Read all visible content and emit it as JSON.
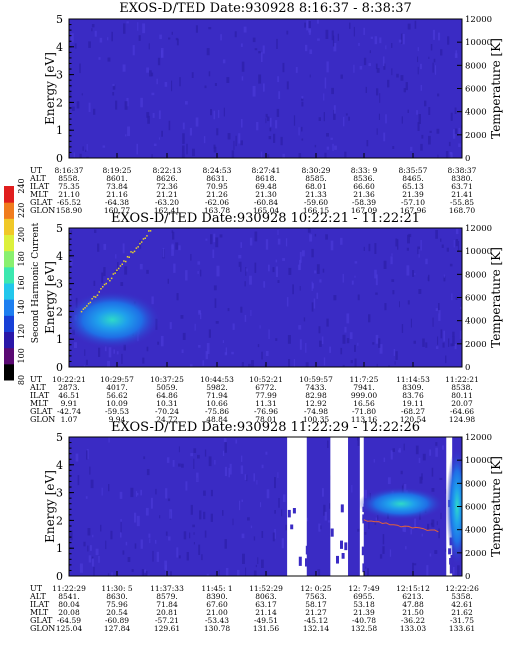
{
  "colorbar": {
    "label": "Second Harmonic Current",
    "ticks": [
      "80",
      "100",
      "120",
      "140",
      "160",
      "180",
      "200",
      "220",
      "240"
    ],
    "colors": [
      "#000000",
      "#5a0a73",
      "#2a17a8",
      "#1840d6",
      "#1e7ff0",
      "#22c7ec",
      "#3ce8b0",
      "#8af070",
      "#dcf03c",
      "#f0c828",
      "#f07c1e",
      "#e01e1e"
    ]
  },
  "chart_data": [
    {
      "type": "heatmap",
      "title": "EXOS-D/TED  Date:930928  8:16:37 - 8:38:37",
      "ylabel": "Energy [eV]",
      "ylabel_right": "Temperature [K]",
      "ylim": [
        0,
        5
      ],
      "yticks": [
        "0",
        "1",
        "2",
        "3",
        "4",
        "5"
      ],
      "ylim_right": [
        0,
        12000
      ],
      "yticks_right": [
        "0",
        "2000",
        "4000",
        "6000",
        "8000",
        "10000",
        "12000"
      ],
      "table_rows": [
        "UT",
        "ALT",
        "ILAT",
        "MLT",
        "GLAT",
        "GLON"
      ],
      "table_cols": [
        [
          "8:16:37",
          "8558.",
          "75.35",
          "21.10",
          "-65.52",
          "158.90"
        ],
        [
          "8:19:25",
          "8601.",
          "73.84",
          "21.16",
          "-64.38",
          "160.77"
        ],
        [
          "8:22:13",
          "8626.",
          "72.36",
          "21.21",
          "-63.20",
          "162.41"
        ],
        [
          "8:24:53",
          "8631.",
          "70.95",
          "21.26",
          "-62.06",
          "163.78"
        ],
        [
          "8:27:41",
          "8618.",
          "69.48",
          "21.30",
          "-60.84",
          "165.04"
        ],
        [
          "8:30:29",
          "8585.",
          "68.01",
          "21.33",
          "-59.60",
          "166.15"
        ],
        [
          "8:33: 9",
          "8536.",
          "66.60",
          "21.36",
          "-58.39",
          "167.09"
        ],
        [
          "8:35:57",
          "8465.",
          "65.13",
          "21.39",
          "-57.10",
          "167.96"
        ],
        [
          "8:38:37",
          "8380.",
          "63.71",
          "21.41",
          "-55.85",
          "168.70"
        ]
      ],
      "features": []
    },
    {
      "type": "heatmap",
      "title": "EXOS-D/TED  Date:930928  10:22:21 - 11:22:21",
      "ylabel": "Energy [eV]",
      "ylabel_right": "Temperature [K]",
      "ylim": [
        0,
        5
      ],
      "yticks": [
        "0",
        "1",
        "2",
        "3",
        "4",
        "5"
      ],
      "ylim_right": [
        0,
        12000
      ],
      "yticks_right": [
        "0",
        "2000",
        "4000",
        "6000",
        "8000",
        "10000",
        "12000"
      ],
      "table_rows": [
        "UT",
        "ALT",
        "ILAT",
        "MLT",
        "GLAT",
        "GLON"
      ],
      "table_cols": [
        [
          "10:22:21",
          "2873.",
          "46.51",
          "9.91",
          "-42.74",
          "1.07"
        ],
        [
          "10:29:57",
          "4017.",
          "56.62",
          "10.09",
          "-59.53",
          "9.94"
        ],
        [
          "10:37:25",
          "5059.",
          "64.86",
          "10.31",
          "-70.24",
          "24.72"
        ],
        [
          "10:44:53",
          "5982.",
          "71.94",
          "10.66",
          "-75.86",
          "48.84"
        ],
        [
          "10:52:21",
          "6772.",
          "77.99",
          "11.31",
          "-76.96",
          "78.01"
        ],
        [
          "10:59:57",
          "7433.",
          "82.98",
          "12.92",
          "-74.98",
          "100.35"
        ],
        [
          "11:7:25",
          "7941.",
          "999.00",
          "16.56",
          "-71.80",
          "113.16"
        ],
        [
          "11:14:53",
          "8309.",
          "83.76",
          "19.11",
          "-68.27",
          "120.54"
        ],
        [
          "11:22:21",
          "8538.",
          "80.11",
          "20.07",
          "-64.66",
          "124.98"
        ]
      ],
      "features": [
        {
          "kind": "ion-enhancement",
          "x_range": [
            0,
            0.22
          ],
          "energy_center": 1.7,
          "energy_halfwidth": 0.9,
          "level": "high"
        }
      ]
    },
    {
      "type": "heatmap",
      "title": "EXOS-D/TED  Date:930928  11:22:29 - 12:22:26",
      "ylabel": "Energy [eV]",
      "ylabel_right": "Temperature [K]",
      "ylim": [
        0,
        5
      ],
      "yticks": [
        "0",
        "1",
        "2",
        "3",
        "4",
        "5"
      ],
      "ylim_right": [
        0,
        12000
      ],
      "yticks_right": [
        "0",
        "2000",
        "4000",
        "6000",
        "8000",
        "10000",
        "12000"
      ],
      "table_rows": [
        "UT",
        "ALT",
        "ILAT",
        "MLT",
        "GLAT",
        "GLON"
      ],
      "table_cols": [
        [
          "11:22:29",
          "8541.",
          "80.04",
          "20.08",
          "-64.59",
          "125.04"
        ],
        [
          "11:30: 5",
          "8630.",
          "75.96",
          "20.54",
          "-60.89",
          "127.84"
        ],
        [
          "11:37:33",
          "8579.",
          "71.84",
          "20.81",
          "-57.21",
          "129.61"
        ],
        [
          "11:45: 1",
          "8390.",
          "67.60",
          "21.00",
          "-53.43",
          "130.78"
        ],
        [
          "11:52:29",
          "8063.",
          "63.17",
          "21.14",
          "-49.51",
          "131.56"
        ],
        [
          "12: 0:25",
          "7563.",
          "58.17",
          "21.27",
          "-45.12",
          "132.14"
        ],
        [
          "12: 7:49",
          "6955.",
          "53.18",
          "21.39",
          "-40.78",
          "132.58"
        ],
        [
          "12:15:12",
          "6213.",
          "47.88",
          "21.50",
          "-36.22",
          "133.03"
        ],
        [
          "12:22:26",
          "5358.",
          "42.61",
          "21.62",
          "-31.75",
          "133.61"
        ]
      ],
      "features": [
        {
          "kind": "data-gap",
          "x_range": [
            0.555,
            0.605
          ]
        },
        {
          "kind": "data-gap",
          "x_range": [
            0.665,
            0.71
          ]
        },
        {
          "kind": "data-gap",
          "x_range": [
            0.74,
            0.75
          ]
        },
        {
          "kind": "data-gap",
          "x_range": [
            0.96,
            0.975
          ]
        },
        {
          "kind": "ion-enhancement",
          "x_range": [
            0.75,
            0.94
          ],
          "energy_center": 2.6,
          "energy_halfwidth": 0.45,
          "level": "high"
        },
        {
          "kind": "ion-enhancement",
          "x_range": [
            0.975,
            1.0
          ],
          "energy_center": 2.5,
          "energy_halfwidth": 2.0,
          "level": "high"
        }
      ]
    }
  ]
}
